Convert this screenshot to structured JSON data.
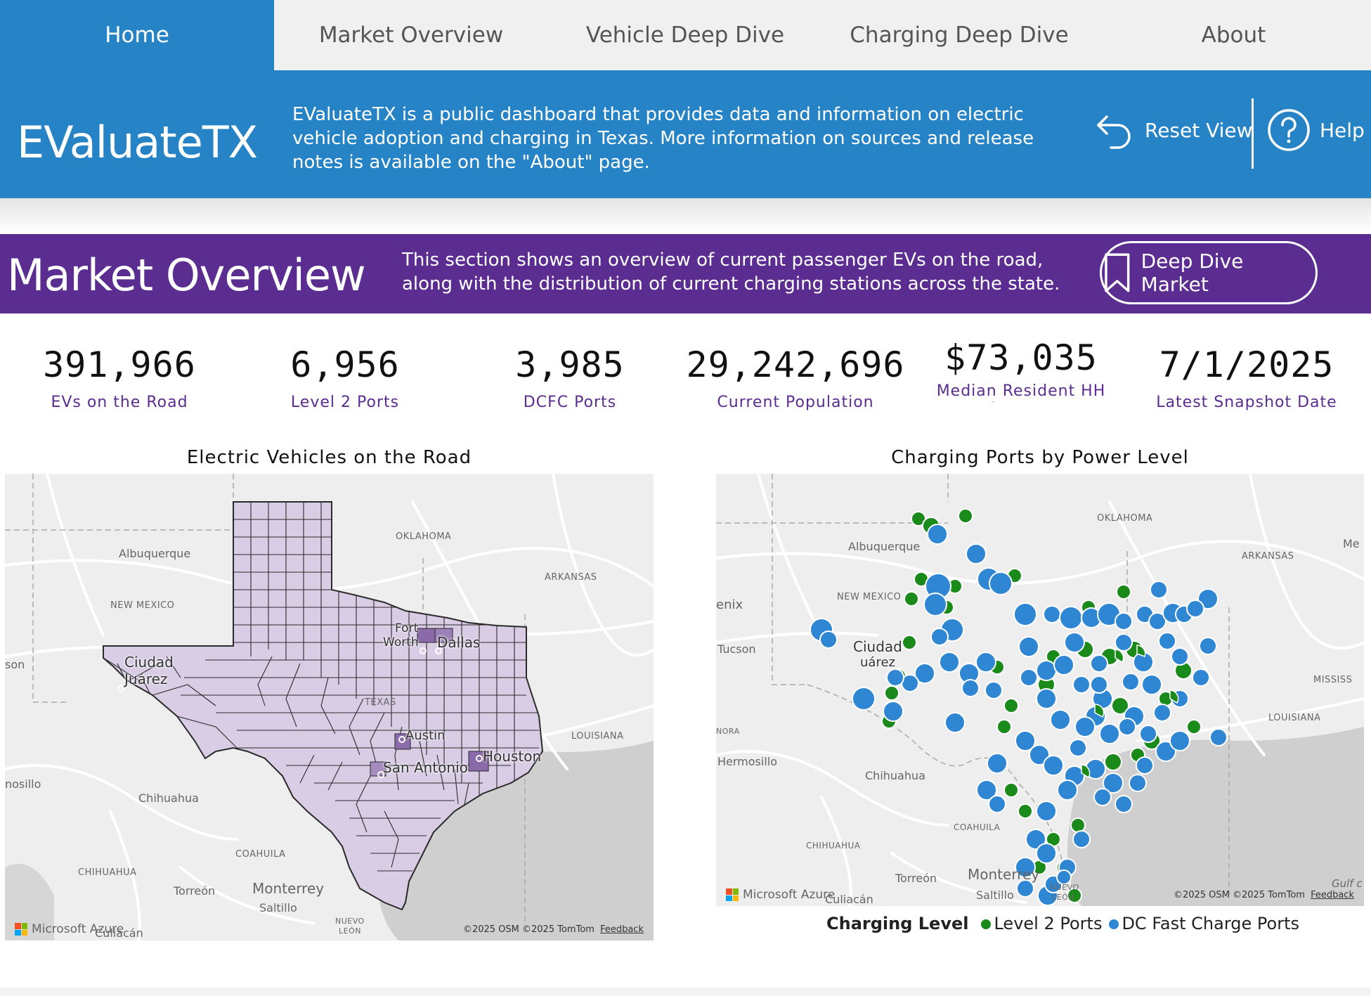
{
  "nav": {
    "tabs": [
      {
        "label": "Home",
        "active": true
      },
      {
        "label": "Market Overview",
        "active": false
      },
      {
        "label": "Vehicle Deep Dive",
        "active": false
      },
      {
        "label": "Charging Deep Dive",
        "active": false
      },
      {
        "label": "About",
        "active": false
      }
    ]
  },
  "header": {
    "title": "EValuateTX",
    "description": "EValuateTX is a public dashboard that provides data and information on electric vehicle adoption and charging in Texas. More information on sources and release notes is available on the \"About\" page.",
    "reset_label": "Reset View",
    "help_label": "Help"
  },
  "section": {
    "title": "Market Overview",
    "description": "This section shows an overview of current passenger EVs on the road, along with the distribution of current charging stations across the state.",
    "deep_dive_label": "Deep Dive Market"
  },
  "kpis": [
    {
      "value": "391,966",
      "label": "EVs on the Road"
    },
    {
      "value": "6,956",
      "label": "Level 2 Ports"
    },
    {
      "value": "3,985",
      "label": "DCFC Ports"
    },
    {
      "value": "29,242,696",
      "label": "Current Population"
    },
    {
      "value": "$73,035",
      "label": "Median Resident HH Income"
    },
    {
      "value": "7/1/2025",
      "label": "Latest Snapshot Date"
    }
  ],
  "map_ev": {
    "title": "Electric Vehicles on the Road",
    "labels": {
      "oklahoma": "OKLAHOMA",
      "albuquerque": "Albuquerque",
      "arkansas": "ARKANSAS",
      "new_mexico": "NEW MEXICO",
      "fort_worth_1": "Fort",
      "fort_worth_2": "Worth",
      "dallas": "Dallas",
      "ciudad_1": "Ciudad",
      "juarez": "Juárez",
      "texas": "TEXAS",
      "louisiana": "LOUISIANA",
      "austin": "Austin",
      "houston": "Houston",
      "san_antonio": "San Antonio",
      "hermosillo": "nosillo",
      "chihuahua": "Chihuahua",
      "coahuila": "COAHUILA",
      "chihuahua_state": "CHIHUAHUA",
      "torreon": "Torreón",
      "monterrey": "Monterrey",
      "saltillo": "Saltillo",
      "nuevo_1": "NUEVO",
      "nuevo_2": "LEÓN",
      "culiacan": "Culiacán",
      "son": "son"
    },
    "azure": "Microsoft Azure",
    "copyright": "©2025 OSM  ©2025 TomTom",
    "feedback": "Feedback",
    "fill_color": "#d9cde6",
    "highlight_color": "#8a6aa8"
  },
  "map_charging": {
    "title": "Charging Ports by Power Level",
    "labels": {
      "oklahoma": "OKLAHOMA",
      "albuquerque": "Albuquerque",
      "arkansas": "ARKANSAS",
      "new_mexico": "NEW MEXICO",
      "phoenix": "enix",
      "tucson": "Tucson",
      "ciudad_1": "Ciudad",
      "juarez": "uárez",
      "louisiana": "LOUISIANA",
      "mississippi": "MISSISS",
      "sonora": "NORA",
      "hermosillo": "Hermosillo",
      "chihuahua": "Chihuahua",
      "coahuila": "COAHUILA",
      "chihuahua_state": "CHIHUAHUA",
      "torreon": "Torreón",
      "monterrey": "Monterrey",
      "saltillo": "Saltillo",
      "nuevo_1": "NUEVO",
      "nuevo_2": "LEÓN",
      "culiacan": "Culiacán",
      "gulf": "Gulf c",
      "me": "Me"
    },
    "azure": "Microsoft Azure",
    "copyright": "©2025 OSM  ©2025 TomTom",
    "feedback": "Feedback"
  },
  "legend": {
    "title": "Charging Level",
    "items": [
      {
        "label": "Level 2 Ports",
        "color": "#1a8a1a"
      },
      {
        "label": "DC Fast Charge Ports",
        "color": "#2f86d3"
      }
    ]
  },
  "colors": {
    "nav_active": "#2683c6",
    "header_bg": "#2683c6",
    "section_bg": "#5b2d91",
    "kpi_label": "#5b2d91"
  }
}
